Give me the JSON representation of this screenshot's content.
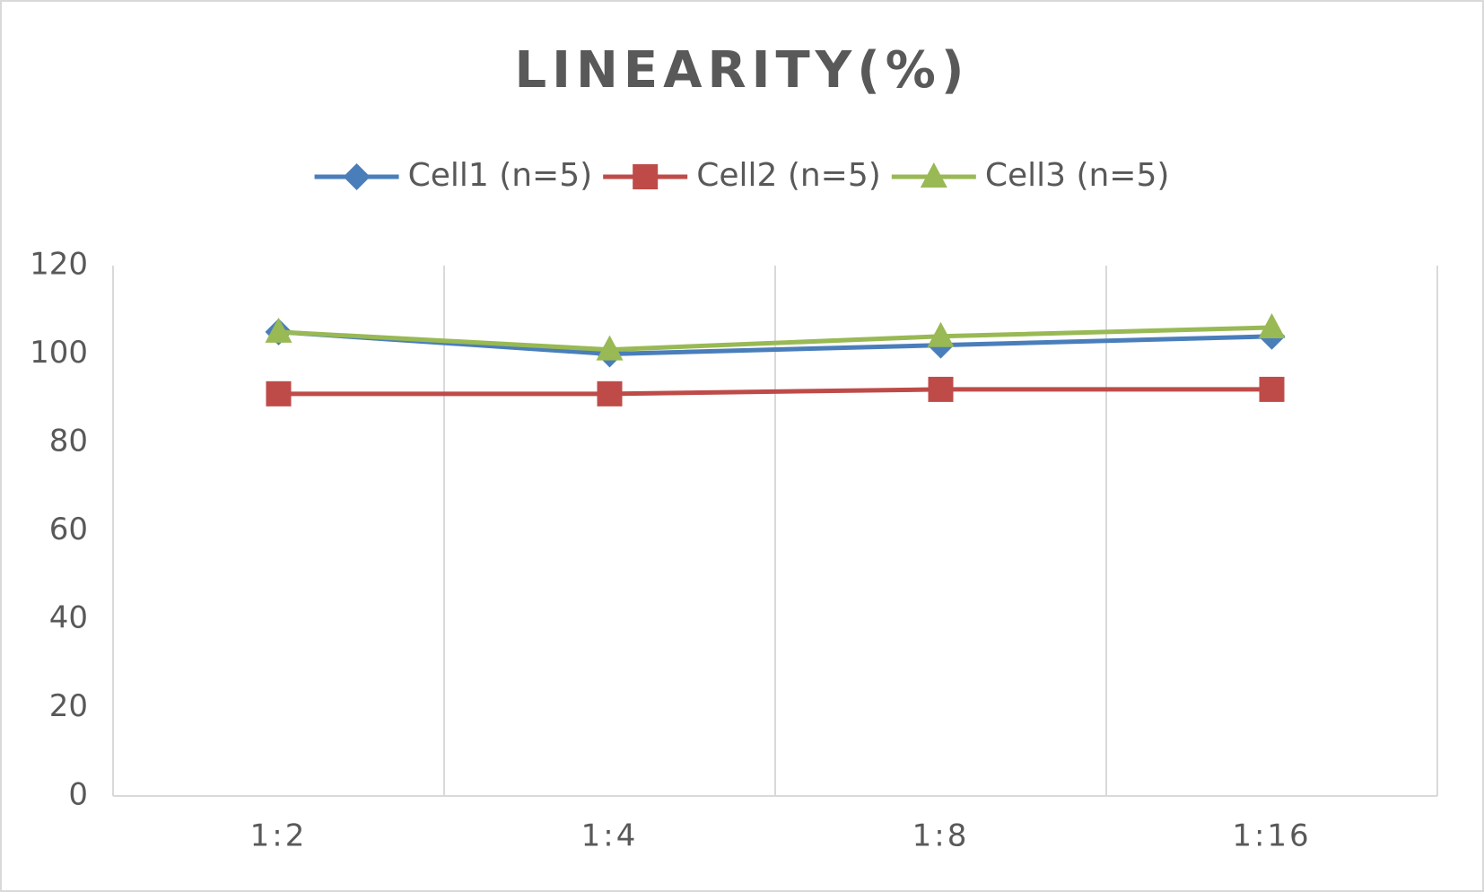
{
  "chart_data": {
    "type": "line",
    "title": "LINEARITY(%)",
    "categories": [
      "1:2",
      "1:4",
      "1:8",
      "1:16"
    ],
    "series": [
      {
        "name": "Cell1 (n=5)",
        "color": "#4a7ebb",
        "marker": "diamond",
        "values": [
          105,
          100,
          102,
          104
        ]
      },
      {
        "name": "Cell2 (n=5)",
        "color": "#be4b48",
        "marker": "square",
        "values": [
          91,
          91,
          92,
          92
        ]
      },
      {
        "name": "Cell3 (n=5)",
        "color": "#98b954",
        "marker": "triangle",
        "values": [
          105,
          101,
          104,
          106
        ]
      }
    ],
    "ylim": [
      0,
      120
    ],
    "yticks": [
      0,
      20,
      40,
      60,
      80,
      100,
      120
    ],
    "grid": "x",
    "legend": "top"
  }
}
